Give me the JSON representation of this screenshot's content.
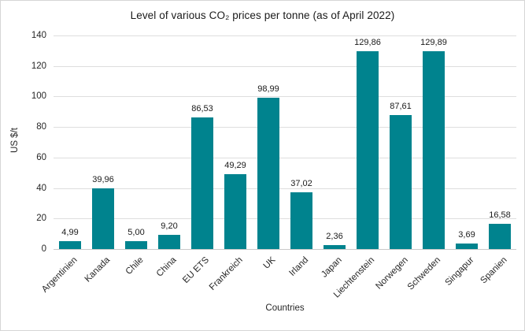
{
  "title": "Level of various CO₂ prices per tonne (as of April 2022)",
  "colors": {
    "bar": "#00838E",
    "gridline": "#dedede",
    "zero_line": "#c9c9c9",
    "text": "#262626",
    "background": "#ffffff",
    "frame_border": "#d6d6d6"
  },
  "chart_data": {
    "type": "bar",
    "title": "Level of various CO₂ prices per tonne (as of April 2022)",
    "xlabel": "Countries",
    "ylabel": "US $/t",
    "categories": [
      "Argentinien",
      "Kanada",
      "Chile",
      "China",
      "EU ETS",
      "Frankreich",
      "UK",
      "Irland",
      "Japan",
      "Liechtenstein",
      "Norwegen",
      "Schweden",
      "Singapur",
      "Spanien"
    ],
    "values": [
      4.99,
      39.96,
      5.0,
      9.2,
      86.53,
      49.29,
      98.99,
      37.02,
      2.36,
      129.86,
      87.61,
      129.89,
      3.69,
      16.58
    ],
    "value_labels": [
      "4,99",
      "39,96",
      "5,00",
      "9,20",
      "86,53",
      "49,29",
      "98,99",
      "37,02",
      "2,36",
      "129,86",
      "87,61",
      "129,89",
      "3,69",
      "16,58"
    ],
    "ylim": [
      0,
      140
    ],
    "ytick_step": 20,
    "yticks": [
      0,
      20,
      40,
      60,
      80,
      100,
      120,
      140
    ],
    "grid": true,
    "legend": false,
    "bar_color": "#00838E",
    "decimal_separator": ","
  }
}
